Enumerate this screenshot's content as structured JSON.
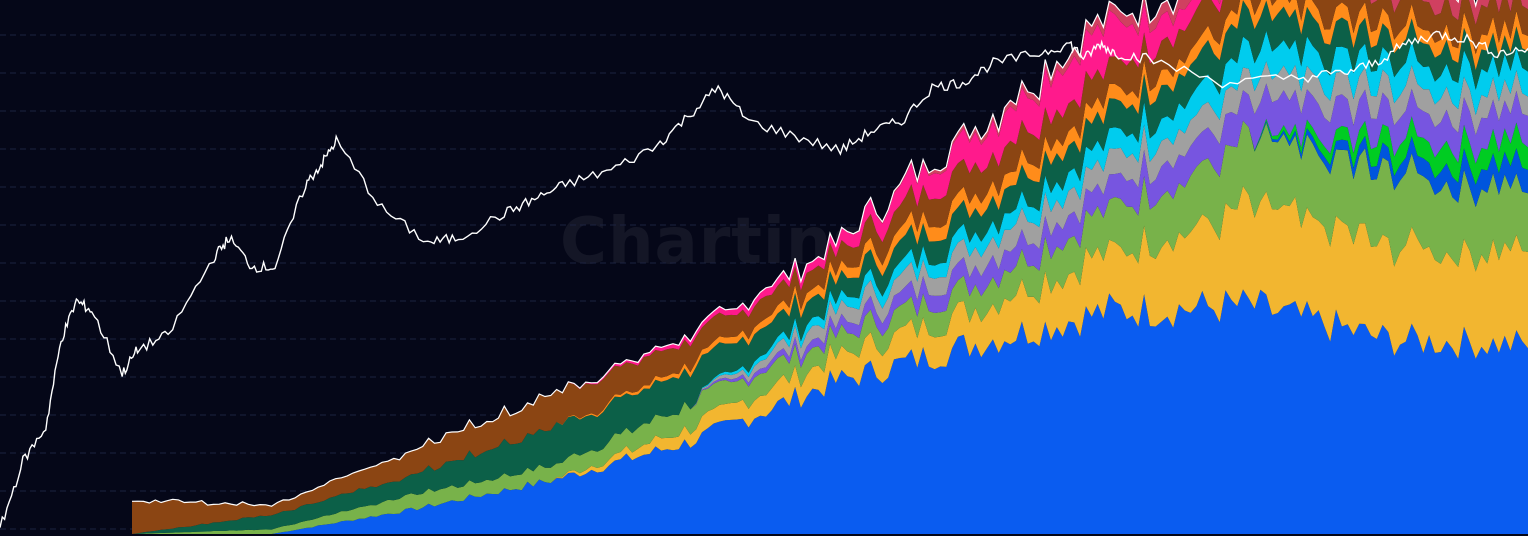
{
  "watermark": "Chartinspect",
  "chart_data": {
    "type": "area",
    "title": "",
    "xlabel": "",
    "ylabel": "",
    "x_axis": "time",
    "grid": true,
    "legend": "none",
    "stack_breakpoints": [
      0,
      10,
      20,
      30,
      40,
      50,
      60,
      70,
      80,
      90,
      100
    ],
    "series": [
      {
        "color": "#0a5cf0",
        "values": [
          0,
          0,
          5,
          11,
          19,
          31,
          39,
          46,
          47,
          40,
          39
        ]
      },
      {
        "color": "#f2b630",
        "values": [
          0,
          0,
          0,
          0,
          3,
          5,
          7,
          12,
          20,
          20,
          19
        ]
      },
      {
        "color": "#78b24a",
        "values": [
          0,
          1,
          3,
          3,
          5,
          4,
          5,
          9,
          13,
          15,
          13
        ]
      },
      {
        "color": "#0055dd",
        "values": [
          0,
          0,
          0,
          0,
          0,
          0,
          0,
          0,
          0,
          3,
          5
        ]
      },
      {
        "color": "#00cc22",
        "values": [
          0,
          0,
          0,
          0,
          0,
          0,
          0,
          0,
          0,
          4,
          5
        ]
      },
      {
        "color": "#7755e0",
        "values": [
          0,
          0,
          0,
          0,
          0,
          2,
          4,
          5,
          7,
          6,
          6
        ]
      },
      {
        "color": "#a0a0a0",
        "values": [
          0,
          0,
          0,
          0,
          0,
          3,
          4,
          5,
          5,
          5,
          4
        ]
      },
      {
        "color": "#00ccee",
        "values": [
          0,
          0,
          0,
          0,
          0,
          2,
          3,
          4,
          6,
          5,
          5
        ]
      },
      {
        "color": "#0c6048",
        "values": [
          0,
          3,
          4,
          8,
          7,
          4,
          5,
          6,
          7,
          5,
          4
        ]
      },
      {
        "color": "#ff8c1a",
        "values": [
          0,
          0,
          0,
          0,
          1,
          2,
          3,
          3,
          3,
          3,
          3
        ]
      },
      {
        "color": "#8b4513",
        "values": [
          7,
          2,
          5,
          7,
          5,
          4,
          6,
          6,
          7,
          6,
          6
        ]
      },
      {
        "color": "#ff1a8c",
        "values": [
          0,
          0,
          0,
          0,
          1,
          2,
          6,
          9,
          0,
          0,
          0
        ]
      },
      {
        "color": "#d04060",
        "values": [
          0,
          0,
          0,
          0,
          0,
          0,
          1,
          2,
          3,
          4,
          4
        ]
      }
    ],
    "line": {
      "color": "#ffffff",
      "x": [
        0,
        1.5,
        3,
        4,
        5,
        6,
        8,
        9,
        11,
        14,
        15,
        16.5,
        18,
        20,
        21,
        22,
        25,
        28,
        30,
        33,
        35,
        37,
        40,
        43,
        45,
        47,
        49,
        52,
        55,
        57,
        59,
        61,
        63,
        65,
        68,
        70,
        71,
        72,
        73,
        75,
        80,
        85,
        88,
        90,
        92,
        94,
        96,
        98,
        100
      ],
      "y": [
        1,
        15,
        22,
        40,
        48,
        46,
        33,
        38,
        41,
        57,
        61,
        55,
        55,
        72,
        76,
        81,
        67,
        60,
        61,
        66,
        69,
        72,
        75,
        80,
        86,
        92,
        85,
        82,
        79,
        83,
        85,
        92,
        93,
        97,
        99,
        101,
        98,
        101,
        99,
        98,
        93,
        94,
        95,
        97,
        101,
        103,
        102,
        99,
        100
      ]
    },
    "ylim": [
      0,
      110
    ],
    "xlim": [
      0,
      100
    ]
  }
}
